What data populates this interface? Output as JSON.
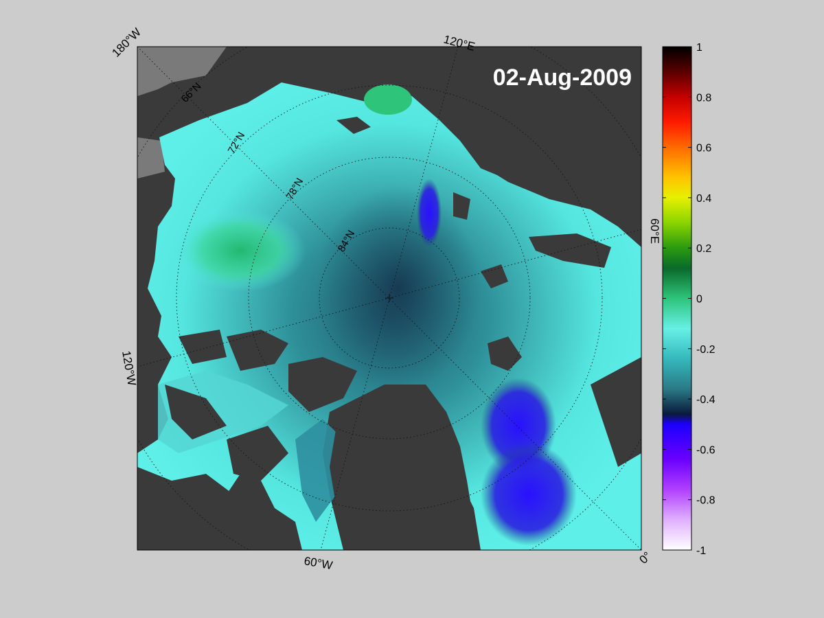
{
  "date_label": "02-Aug-2009",
  "longitude_labels": {
    "top_left": "180°W",
    "top": "120°E",
    "right": "60°E",
    "left": "120°W",
    "bottom": "60°W",
    "bottom_right": "0°"
  },
  "latitude_labels": [
    "66°N",
    "72°N",
    "78°N",
    "84°N"
  ],
  "colorbar": {
    "ticks": [
      "1",
      "0.8",
      "0.6",
      "0.4",
      "0.2",
      "0",
      "-0.2",
      "-0.4",
      "-0.6",
      "-0.8",
      "-1"
    ],
    "range": [
      -1,
      1
    ]
  },
  "colors": {
    "background": "#cccccc",
    "land": "#3a3a3a",
    "land_shadow": "#7a7a7a",
    "ocean_light": "#55e6e0",
    "ocean_mid": "#2e8f98",
    "ocean_dark": "#1f5a6e",
    "anomaly_blue": "#2a1cf0",
    "anomaly_green": "#2ec47a"
  }
}
